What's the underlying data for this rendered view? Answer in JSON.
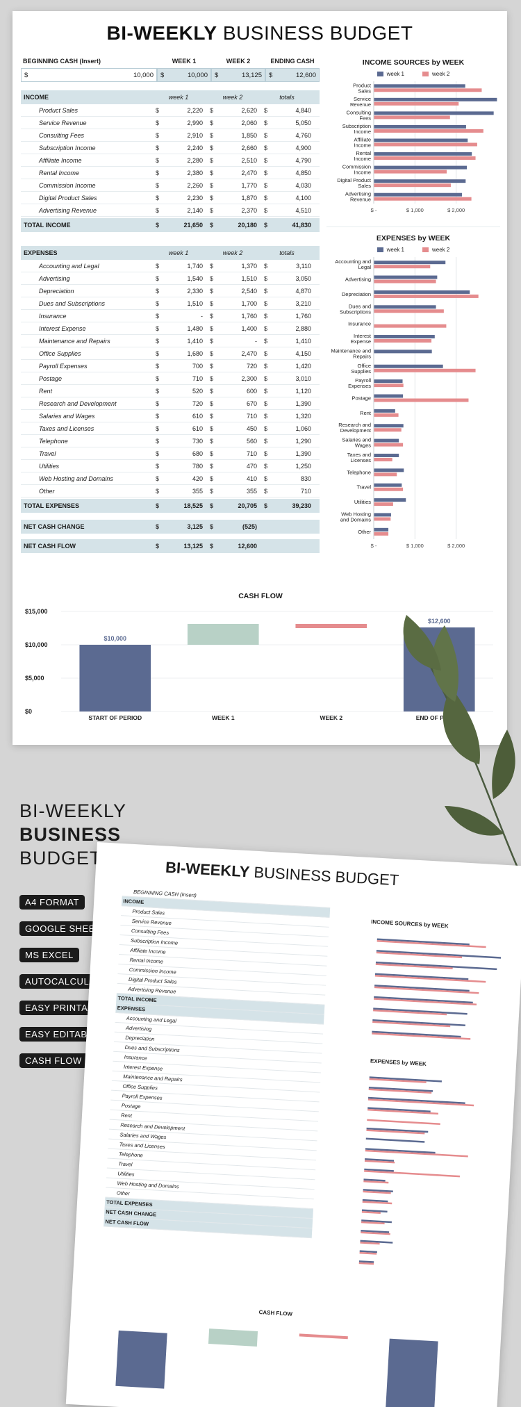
{
  "title": {
    "bold": "BI-WEEKLY",
    "light": "BUSINESS BUDGET"
  },
  "header": {
    "beginning_cash_label": "BEGINNING CASH (Insert)",
    "week1": "WEEK 1",
    "week2": "WEEK 2",
    "ending_cash": "ENDING CASH"
  },
  "cash_row": {
    "currency": "$",
    "beginning": "10,000",
    "week1": "10,000",
    "week2": "13,125",
    "ending": "12,600"
  },
  "income": {
    "label": "INCOME",
    "col1": "week 1",
    "col2": "week 2",
    "col3": "totals",
    "rows": [
      {
        "name": "Product Sales",
        "w1": "2,220",
        "w2": "2,620",
        "t": "4,840"
      },
      {
        "name": "Service Revenue",
        "w1": "2,990",
        "w2": "2,060",
        "t": "5,050"
      },
      {
        "name": "Consulting Fees",
        "w1": "2,910",
        "w2": "1,850",
        "t": "4,760"
      },
      {
        "name": "Subscription Income",
        "w1": "2,240",
        "w2": "2,660",
        "t": "4,900"
      },
      {
        "name": "Affiliate Income",
        "w1": "2,280",
        "w2": "2,510",
        "t": "4,790"
      },
      {
        "name": "Rental Income",
        "w1": "2,380",
        "w2": "2,470",
        "t": "4,850"
      },
      {
        "name": "Commission Income",
        "w1": "2,260",
        "w2": "1,770",
        "t": "4,030"
      },
      {
        "name": "Digital Product Sales",
        "w1": "2,230",
        "w2": "1,870",
        "t": "4,100"
      },
      {
        "name": "Advertising Revenue",
        "w1": "2,140",
        "w2": "2,370",
        "t": "4,510"
      }
    ],
    "total_label": "TOTAL INCOME",
    "total_w1": "21,650",
    "total_w2": "20,180",
    "total_t": "41,830"
  },
  "expenses": {
    "label": "EXPENSES",
    "col1": "week 1",
    "col2": "week 2",
    "col3": "totals",
    "rows": [
      {
        "name": "Accounting and Legal",
        "w1": "1,740",
        "w2": "1,370",
        "t": "3,110"
      },
      {
        "name": "Advertising",
        "w1": "1,540",
        "w2": "1,510",
        "t": "3,050"
      },
      {
        "name": "Depreciation",
        "w1": "2,330",
        "w2": "2,540",
        "t": "4,870"
      },
      {
        "name": "Dues and Subscriptions",
        "w1": "1,510",
        "w2": "1,700",
        "t": "3,210"
      },
      {
        "name": "Insurance",
        "w1": "-",
        "w2": "1,760",
        "t": "1,760"
      },
      {
        "name": "Interest Expense",
        "w1": "1,480",
        "w2": "1,400",
        "t": "2,880"
      },
      {
        "name": "Maintenance and Repairs",
        "w1": "1,410",
        "w2": "-",
        "t": "1,410"
      },
      {
        "name": "Office Supplies",
        "w1": "1,680",
        "w2": "2,470",
        "t": "4,150"
      },
      {
        "name": "Payroll Expenses",
        "w1": "700",
        "w2": "720",
        "t": "1,420"
      },
      {
        "name": "Postage",
        "w1": "710",
        "w2": "2,300",
        "t": "3,010"
      },
      {
        "name": "Rent",
        "w1": "520",
        "w2": "600",
        "t": "1,120"
      },
      {
        "name": "Research and Development",
        "w1": "720",
        "w2": "670",
        "t": "1,390"
      },
      {
        "name": "Salaries and Wages",
        "w1": "610",
        "w2": "710",
        "t": "1,320"
      },
      {
        "name": "Taxes and Licenses",
        "w1": "610",
        "w2": "450",
        "t": "1,060"
      },
      {
        "name": "Telephone",
        "w1": "730",
        "w2": "560",
        "t": "1,290"
      },
      {
        "name": "Travel",
        "w1": "680",
        "w2": "710",
        "t": "1,390"
      },
      {
        "name": "Utilities",
        "w1": "780",
        "w2": "470",
        "t": "1,250"
      },
      {
        "name": "Web Hosting and Domains",
        "w1": "420",
        "w2": "410",
        "t": "830"
      },
      {
        "name": "Other",
        "w1": "355",
        "w2": "355",
        "t": "710"
      }
    ],
    "total_label": "TOTAL EXPENSES",
    "total_w1": "18,525",
    "total_w2": "20,705",
    "total_t": "39,230"
  },
  "net_change": {
    "label": "NET CASH CHANGE",
    "w1": "3,125",
    "w2": "(525)"
  },
  "net_flow": {
    "label": "NET CASH FLOW",
    "w1": "13,125",
    "w2": "12,600"
  },
  "colors": {
    "week1": "#5b6a91",
    "week2": "#e58c8e",
    "shade": "#d5e3e8",
    "flow_up": "#b8d1c6"
  },
  "chart_data": [
    {
      "type": "bar",
      "orientation": "horizontal",
      "title": "INCOME SOURCES by WEEK",
      "categories": [
        "Product Sales",
        "Service Revenue",
        "Consulting Fees",
        "Subscription Income",
        "Affiliate Income",
        "Rental Income",
        "Commission Income",
        "Digital Product Sales",
        "Advertising Revenue"
      ],
      "series": [
        {
          "name": "week 1",
          "values": [
            2220,
            2990,
            2910,
            2240,
            2280,
            2380,
            2260,
            2230,
            2140
          ]
        },
        {
          "name": "week 2",
          "values": [
            2620,
            2060,
            1850,
            2660,
            2510,
            2470,
            1770,
            1870,
            2370
          ]
        }
      ],
      "tick_labels": [
        "$ -",
        "$ 1,000",
        "$ 2,000"
      ],
      "xlim": [
        0,
        3000
      ]
    },
    {
      "type": "bar",
      "orientation": "horizontal",
      "title": "EXPENSES by WEEK",
      "categories": [
        "Accounting and Legal",
        "Advertising",
        "Depreciation",
        "Dues and Subscriptions",
        "Insurance",
        "Interest Expense",
        "Maintenance and Repairs",
        "Office Supplies",
        "Payroll Expenses",
        "Postage",
        "Rent",
        "Research and Development",
        "Salaries and Wages",
        "Taxes and Licenses",
        "Telephone",
        "Travel",
        "Utilities",
        "Web Hosting and Domains",
        "Other"
      ],
      "series": [
        {
          "name": "week 1",
          "values": [
            1740,
            1540,
            2330,
            1510,
            0,
            1480,
            1410,
            1680,
            700,
            710,
            520,
            720,
            610,
            610,
            730,
            680,
            780,
            420,
            355
          ]
        },
        {
          "name": "week 2",
          "values": [
            1370,
            1510,
            2540,
            1700,
            1760,
            1400,
            0,
            2470,
            720,
            2300,
            600,
            670,
            710,
            450,
            560,
            710,
            470,
            410,
            355
          ]
        }
      ],
      "tick_labels": [
        "$ -",
        "$ 1,000",
        "$ 2,000"
      ],
      "xlim": [
        0,
        3000
      ]
    },
    {
      "type": "bar",
      "subtype": "waterfall",
      "title": "CASH FLOW",
      "categories": [
        "START OF PERIOD",
        "WEEK 1",
        "WEEK 2",
        "END OF PERIOD"
      ],
      "values": [
        10000,
        3125,
        -525,
        12600
      ],
      "data_labels": [
        "$10,000",
        "",
        "",
        "$12,600"
      ],
      "ytick_labels": [
        "$0",
        "$5,000",
        "$10,000",
        "$15,000"
      ],
      "ylim": [
        0,
        15000
      ]
    }
  ],
  "promo": {
    "line1": "BI-WEEKLY",
    "line2": "BUSINESS",
    "line3": "BUDGET"
  },
  "tags": [
    "A4 FORMAT",
    "GOOGLE SHEETS",
    "MS EXCEL",
    "AUTOCALCULATION",
    "EASY PRINTABLE",
    "EASY EDITABLE",
    "CASH FLOW CHART"
  ]
}
